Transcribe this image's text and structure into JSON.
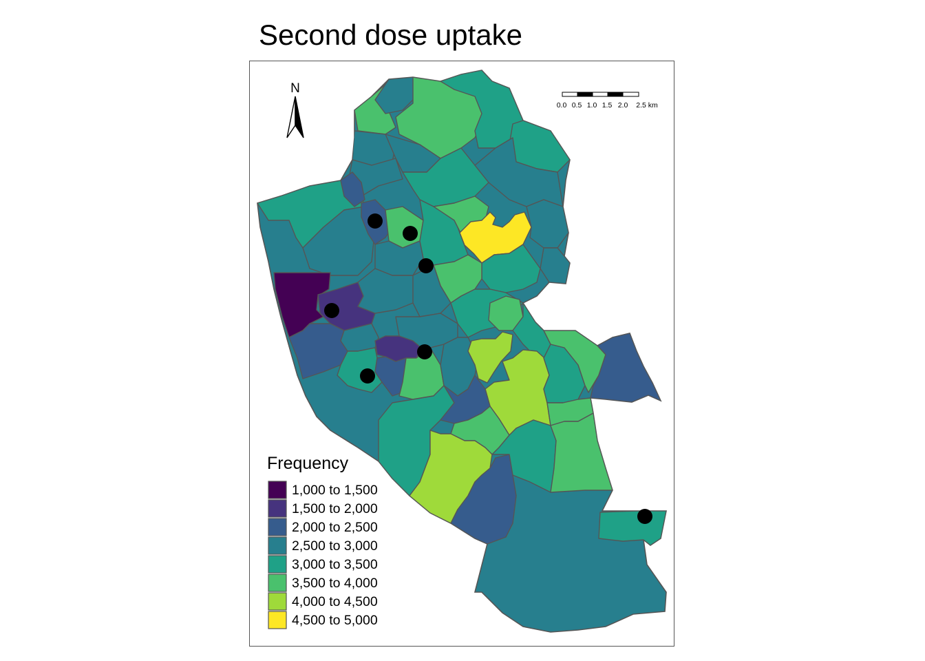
{
  "title": "Second dose uptake",
  "north_label": "N",
  "scale_bar": {
    "ticks": [
      "0.0",
      "0.5",
      "1.0",
      "1.5",
      "2.0",
      "2.5 km"
    ]
  },
  "legend": {
    "title": "Frequency",
    "items": [
      {
        "label": "1,000 to 1,500",
        "color": "#440154"
      },
      {
        "label": "1,500 to 2,000",
        "color": "#46337E"
      },
      {
        "label": "2,000 to 2,500",
        "color": "#365C8D"
      },
      {
        "label": "2,500 to 3,000",
        "color": "#277F8E"
      },
      {
        "label": "3,000 to 3,500",
        "color": "#1FA187"
      },
      {
        "label": "3,500 to 4,000",
        "color": "#4AC16D"
      },
      {
        "label": "4,000 to 4,500",
        "color": "#9FDA3A"
      },
      {
        "label": "4,500 to 5,000",
        "color": "#FDE725"
      }
    ]
  },
  "colors": {
    "border": "#555555",
    "point": "#000000",
    "background": "#ffffff"
  },
  "points_count": 7
}
